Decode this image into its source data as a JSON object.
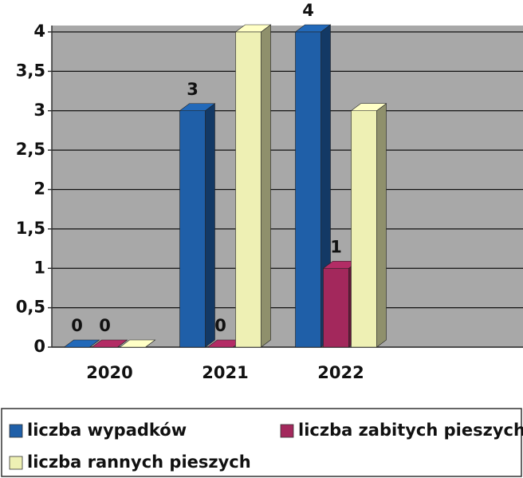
{
  "chart_data": {
    "type": "bar3d",
    "categories": [
      "2020",
      "2021",
      "2022"
    ],
    "series": [
      {
        "name": "liczba wypadków",
        "color": "#1f5fa8",
        "values": [
          0,
          3,
          4
        ],
        "labels": true
      },
      {
        "name": "liczba zabitych pieszych",
        "color": "#a3285c",
        "values": [
          0,
          0,
          1
        ],
        "labels": true
      },
      {
        "name": "liczba rannych pieszych",
        "color": "#eef0b4",
        "values": [
          0,
          4,
          3
        ],
        "labels": false
      }
    ],
    "ylim": [
      0,
      4
    ],
    "yticks": [
      0,
      {
        "value": 0.5,
        "label": "0,5"
      },
      1,
      {
        "value": 1.5,
        "label": "1,5"
      },
      2,
      {
        "value": 2.5,
        "label": "2,5"
      },
      3,
      {
        "value": 3.5,
        "label": "3,5"
      },
      4
    ],
    "grid": true,
    "legend": "bottom"
  }
}
